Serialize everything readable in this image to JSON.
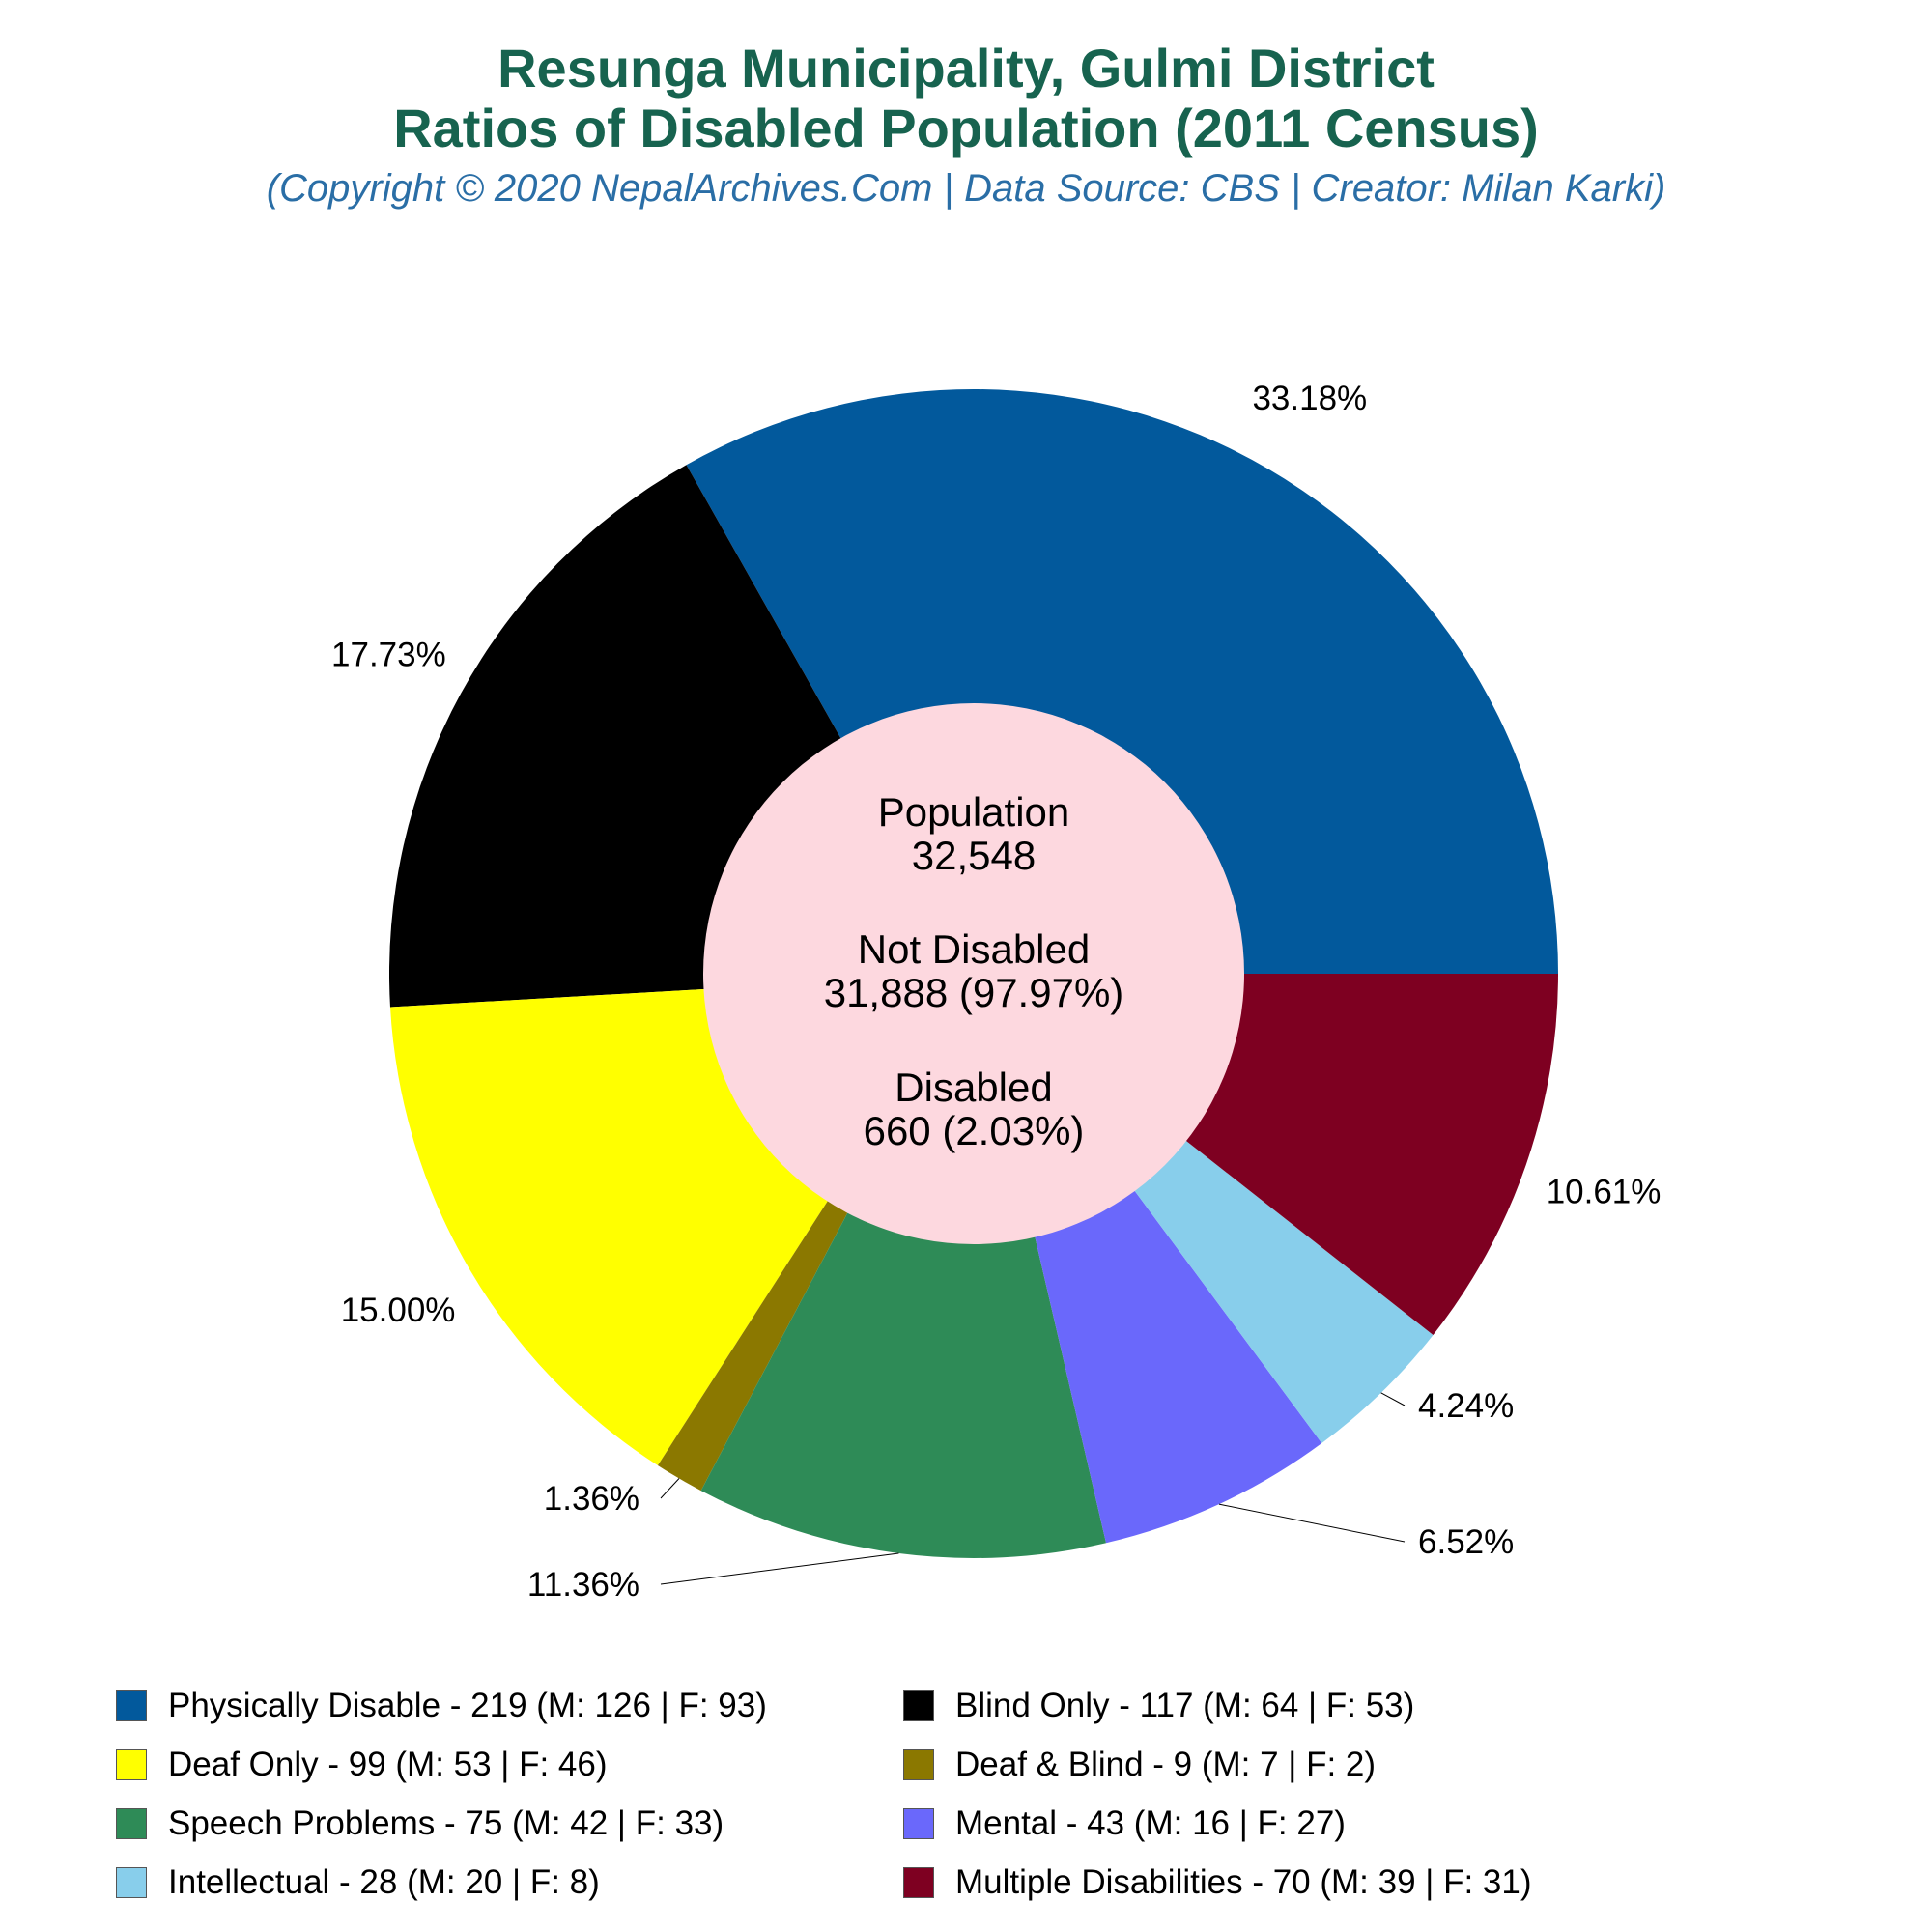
{
  "title": [
    "Resunga Municipality, Gulmi District",
    "Ratios of Disabled Population (2011 Census)"
  ],
  "subtitle": "(Copyright © 2020 NepalArchives.Com | Data Source: CBS | Creator: Milan Karki)",
  "center": {
    "population_label": "Population",
    "population_value": "32,548",
    "not_disabled_label": "Not Disabled",
    "not_disabled_value": "31,888 (97.97%)",
    "disabled_label": "Disabled",
    "disabled_value": "660 (2.03%)"
  },
  "center_color": "#fdd8df",
  "chart_data": {
    "type": "pie",
    "variant": "donut",
    "start_angle_deg": 0,
    "direction": "counterclockwise",
    "slices": [
      {
        "label": "Physically Disable - 219 (M: 126 | F: 93)",
        "value": 219,
        "percent": "33.18%",
        "color": "#02599c"
      },
      {
        "label": "Blind Only - 117 (M: 64 | F: 53)",
        "value": 117,
        "percent": "17.73%",
        "color": "#000000"
      },
      {
        "label": "Deaf Only - 99 (M: 53 | F: 46)",
        "value": 99,
        "percent": "15.00%",
        "color": "#ffff00"
      },
      {
        "label": "Deaf & Blind - 9 (M: 7 | F: 2)",
        "value": 9,
        "percent": "1.36%",
        "color": "#8b7800"
      },
      {
        "label": "Speech Problems - 75 (M: 42 | F: 33)",
        "value": 75,
        "percent": "11.36%",
        "color": "#2e8b57"
      },
      {
        "label": "Mental - 43 (M: 16 | F: 27)",
        "value": 43,
        "percent": "6.52%",
        "color": "#6a68fb"
      },
      {
        "label": "Intellectual - 28 (M: 20 | F: 8)",
        "value": 28,
        "percent": "4.24%",
        "color": "#88ceeb"
      },
      {
        "label": "Multiple Disabilities - 70 (M: 39 | F: 31)",
        "value": 70,
        "percent": "10.61%",
        "color": "#7e0021"
      }
    ],
    "legend_position": "bottom"
  }
}
